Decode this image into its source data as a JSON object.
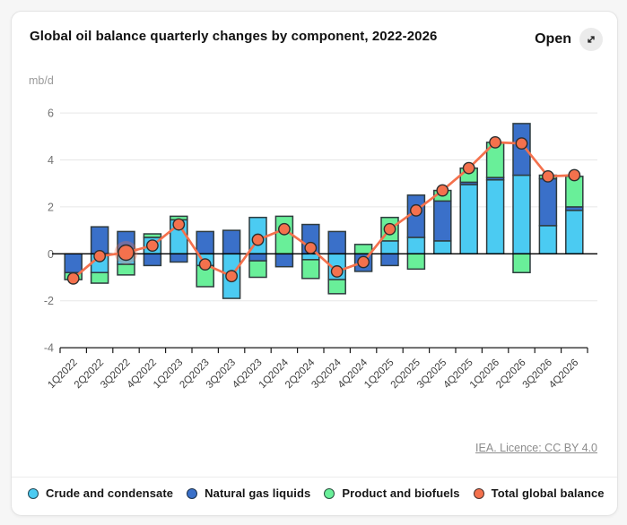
{
  "header": {
    "title": "Global oil balance quarterly changes by component, 2022-2026",
    "open_label": "Open"
  },
  "footer": {
    "licence": "IEA. Licence: CC BY 4.0"
  },
  "chart_data": {
    "type": "bar",
    "subtype": "stacked-column-with-line-overlay",
    "title": "Global oil balance quarterly changes by component, 2022-2026",
    "ylabel": "mb/d",
    "xlabel": "",
    "ylim": [
      -4,
      6
    ],
    "yticks": [
      -4,
      -2,
      0,
      2,
      4,
      6
    ],
    "grid": true,
    "legend_position": "bottom",
    "categories": [
      "1Q2022",
      "2Q2022",
      "3Q2022",
      "4Q2022",
      "1Q2023",
      "2Q2023",
      "3Q2023",
      "4Q2023",
      "1Q2024",
      "2Q2024",
      "3Q2024",
      "4Q2024",
      "1Q2025",
      "2Q2025",
      "3Q2025",
      "4Q2025",
      "1Q2026",
      "2Q2026",
      "3Q2026",
      "4Q2026"
    ],
    "series": [
      {
        "name": "Crude and condensate",
        "type": "column",
        "color": "#4bcbf2",
        "values": [
          0,
          -0.8,
          -0.45,
          0.7,
          1.45,
          -0.5,
          -1.9,
          1.55,
          0,
          -0.25,
          -1.1,
          0,
          0.55,
          0.7,
          0.55,
          2.95,
          3.15,
          3.35,
          1.2,
          1.85
        ]
      },
      {
        "name": "Natural gas liquids",
        "type": "column",
        "color": "#3a70c9",
        "values": [
          -0.8,
          1.15,
          0.95,
          -0.5,
          -0.35,
          0.95,
          1.0,
          -0.3,
          -0.55,
          1.25,
          0.95,
          -0.75,
          -0.5,
          1.8,
          1.7,
          0.1,
          0.1,
          2.2,
          2.0,
          0.15
        ]
      },
      {
        "name": "Product and biofuels",
        "type": "column",
        "color": "#69ef99",
        "values": [
          -0.3,
          -0.45,
          -0.45,
          0.15,
          0.15,
          -0.9,
          0,
          -0.7,
          1.6,
          -0.8,
          -0.6,
          0.4,
          1.0,
          -0.65,
          0.45,
          0.6,
          1.5,
          -0.8,
          0.15,
          1.3
        ]
      },
      {
        "name": "Total global balance",
        "type": "line",
        "color": "#f4714d",
        "values": [
          -1.05,
          -0.1,
          0.05,
          0.35,
          1.25,
          -0.45,
          -0.95,
          0.6,
          1.05,
          0.25,
          -0.75,
          -0.35,
          1.05,
          1.85,
          2.7,
          3.65,
          4.75,
          4.7,
          3.3,
          3.35
        ]
      }
    ],
    "highlighted_point": {
      "series": "Total global balance",
      "category": "3Q2022",
      "index": 2,
      "value": 0.05
    }
  },
  "style": {
    "grid_color": "#e7e7e7",
    "axis_color": "#1a1a1a",
    "bar_border_color": "#2f3b3e",
    "ytick_color": "#737373",
    "xtick_color": "#3d3d3d"
  }
}
